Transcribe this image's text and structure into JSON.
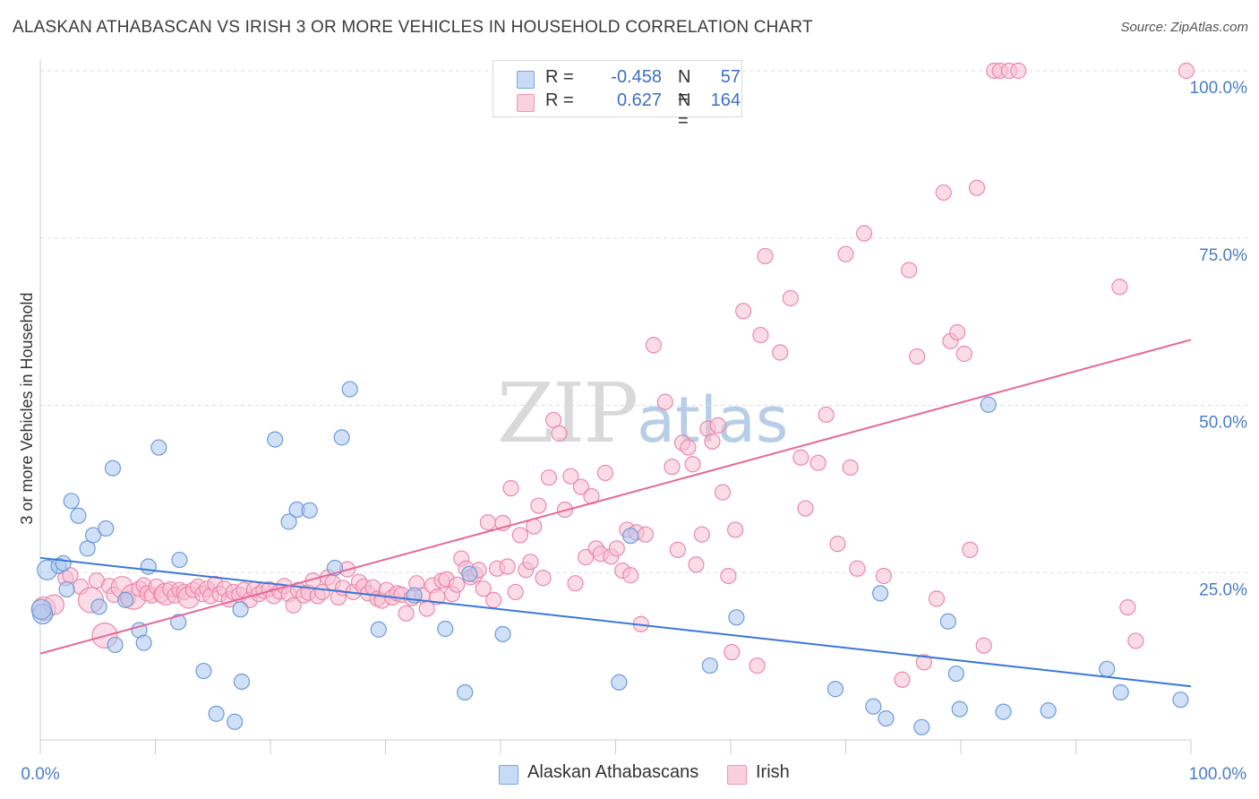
{
  "title": "ALASKAN ATHABASCAN VS IRISH 3 OR MORE VEHICLES IN HOUSEHOLD CORRELATION CHART",
  "source": "Source: ZipAtlas.com",
  "watermark": {
    "zip": "ZIP",
    "atlas": "atlas"
  },
  "legend": {
    "r_label": "R =",
    "n_label": "N =",
    "rows": [
      {
        "series": "Alaskan Athabascans",
        "r": "-0.458",
        "n": "57",
        "color": "#9dbfeb"
      },
      {
        "series": "Irish",
        "r": "0.627",
        "n": "164",
        "color": "#f5a8c2"
      }
    ]
  },
  "colors": {
    "athabascan_fill": "#a9c6ef",
    "athabascan_stroke": "#6d9bdc",
    "athabascan_line": "#3a78d6",
    "irish_fill": "#f8bfd2",
    "irish_stroke": "#ec88aa",
    "irish_line": "#e7679a",
    "tick_text": "#4a7cc7",
    "grid": "#dddddd"
  },
  "chart_data": {
    "type": "scatter",
    "title": "ALASKAN ATHABASCAN VS IRISH 3 OR MORE VEHICLES IN HOUSEHOLD CORRELATION CHART",
    "xlabel": "",
    "ylabel": "3 or more Vehicles in Household",
    "xlim": [
      0,
      100
    ],
    "ylim": [
      0,
      100
    ],
    "x_tick_labels": [
      "0.0%",
      "100.0%"
    ],
    "y_ticks": [
      25,
      50,
      75,
      100
    ],
    "y_tick_labels": [
      "25.0%",
      "50.0%",
      "75.0%",
      "100.0%"
    ],
    "grid": "horizontal dashed",
    "legend_position": "top-center",
    "series": [
      {
        "name": "Alaskan Athabascans",
        "trend": {
          "x": [
            0,
            100
          ],
          "y": [
            27.2,
            8.0
          ]
        },
        "points": [
          [
            0.2,
            18.8
          ],
          [
            0.6,
            25.4
          ],
          [
            1.6,
            26.0
          ],
          [
            2.0,
            26.4
          ],
          [
            2.3,
            22.5
          ],
          [
            2.7,
            35.7
          ],
          [
            3.3,
            33.5
          ],
          [
            4.1,
            28.6
          ],
          [
            4.6,
            30.6
          ],
          [
            5.1,
            19.9
          ],
          [
            5.7,
            31.6
          ],
          [
            6.3,
            40.6
          ],
          [
            6.5,
            14.2
          ],
          [
            7.4,
            20.9
          ],
          [
            8.6,
            16.4
          ],
          [
            9.0,
            14.5
          ],
          [
            9.4,
            25.9
          ],
          [
            10.3,
            43.7
          ],
          [
            12.0,
            17.6
          ],
          [
            12.1,
            26.9
          ],
          [
            14.2,
            10.3
          ],
          [
            15.3,
            3.9
          ],
          [
            16.9,
            2.7
          ],
          [
            17.4,
            19.5
          ],
          [
            17.5,
            8.7
          ],
          [
            20.4,
            44.9
          ],
          [
            21.6,
            32.6
          ],
          [
            22.3,
            34.4
          ],
          [
            23.4,
            34.3
          ],
          [
            25.6,
            25.7
          ],
          [
            26.2,
            45.2
          ],
          [
            26.9,
            52.4
          ],
          [
            29.4,
            16.5
          ],
          [
            32.5,
            21.6
          ],
          [
            35.2,
            16.6
          ],
          [
            36.9,
            7.1
          ],
          [
            37.3,
            24.8
          ],
          [
            40.2,
            15.8
          ],
          [
            50.3,
            8.6
          ],
          [
            51.3,
            30.5
          ],
          [
            58.2,
            11.1
          ],
          [
            60.5,
            18.3
          ],
          [
            69.1,
            7.6
          ],
          [
            72.4,
            5.0
          ],
          [
            73.0,
            21.9
          ],
          [
            73.5,
            3.2
          ],
          [
            76.6,
            1.9
          ],
          [
            78.9,
            17.7
          ],
          [
            79.6,
            9.9
          ],
          [
            79.9,
            4.6
          ],
          [
            82.4,
            50.1
          ],
          [
            83.7,
            4.2
          ],
          [
            87.6,
            4.4
          ],
          [
            92.7,
            10.6
          ],
          [
            93.9,
            7.1
          ],
          [
            99.1,
            6.0
          ],
          [
            0.1,
            19.5
          ]
        ]
      },
      {
        "name": "Irish",
        "trend": {
          "x": [
            0,
            100
          ],
          "y": [
            12.9,
            59.8
          ]
        },
        "points": [
          [
            0.3,
            19.6
          ],
          [
            1.2,
            20.2
          ],
          [
            2.2,
            24.2
          ],
          [
            2.6,
            24.6
          ],
          [
            3.5,
            22.9
          ],
          [
            4.4,
            20.9
          ],
          [
            4.9,
            23.8
          ],
          [
            5.6,
            15.6
          ],
          [
            6.0,
            23.0
          ],
          [
            6.4,
            21.7
          ],
          [
            7.1,
            22.8
          ],
          [
            7.6,
            21.1
          ],
          [
            8.1,
            21.4
          ],
          [
            8.6,
            22.6
          ],
          [
            9.0,
            23.1
          ],
          [
            9.3,
            21.9
          ],
          [
            9.7,
            21.6
          ],
          [
            10.1,
            22.9
          ],
          [
            10.5,
            21.7
          ],
          [
            10.9,
            21.8
          ],
          [
            11.3,
            22.5
          ],
          [
            11.7,
            21.6
          ],
          [
            12.1,
            22.4
          ],
          [
            12.5,
            22.1
          ],
          [
            12.9,
            21.3
          ],
          [
            13.3,
            22.4
          ],
          [
            13.7,
            22.9
          ],
          [
            14.1,
            21.8
          ],
          [
            14.5,
            22.6
          ],
          [
            14.8,
            21.5
          ],
          [
            15.2,
            23.3
          ],
          [
            15.6,
            21.8
          ],
          [
            16.0,
            22.6
          ],
          [
            16.4,
            21.0
          ],
          [
            16.8,
            22.1
          ],
          [
            17.3,
            21.7
          ],
          [
            17.7,
            22.4
          ],
          [
            18.2,
            20.9
          ],
          [
            18.6,
            22.5
          ],
          [
            19.0,
            21.8
          ],
          [
            19.4,
            22.3
          ],
          [
            19.9,
            22.5
          ],
          [
            20.3,
            21.5
          ],
          [
            20.8,
            22.2
          ],
          [
            21.2,
            23.0
          ],
          [
            21.6,
            21.8
          ],
          [
            22.0,
            20.1
          ],
          [
            22.4,
            22.4
          ],
          [
            22.9,
            21.6
          ],
          [
            23.3,
            22.0
          ],
          [
            23.7,
            23.8
          ],
          [
            24.1,
            21.5
          ],
          [
            24.5,
            22.1
          ],
          [
            25.0,
            24.3
          ],
          [
            25.4,
            23.5
          ],
          [
            25.9,
            21.3
          ],
          [
            26.3,
            22.7
          ],
          [
            26.7,
            25.5
          ],
          [
            27.2,
            22.1
          ],
          [
            27.7,
            23.6
          ],
          [
            28.1,
            22.9
          ],
          [
            28.5,
            21.9
          ],
          [
            28.9,
            22.8
          ],
          [
            29.3,
            21.1
          ],
          [
            29.7,
            20.8
          ],
          [
            30.1,
            22.4
          ],
          [
            30.6,
            21.3
          ],
          [
            31.0,
            21.9
          ],
          [
            31.4,
            21.7
          ],
          [
            31.8,
            18.9
          ],
          [
            32.3,
            21.2
          ],
          [
            32.7,
            23.4
          ],
          [
            33.2,
            21.6
          ],
          [
            33.6,
            19.6
          ],
          [
            34.1,
            23.1
          ],
          [
            34.5,
            21.4
          ],
          [
            34.9,
            23.8
          ],
          [
            35.3,
            24.0
          ],
          [
            35.8,
            21.8
          ],
          [
            36.2,
            23.2
          ],
          [
            36.6,
            27.1
          ],
          [
            37.0,
            25.6
          ],
          [
            37.4,
            24.3
          ],
          [
            37.8,
            24.7
          ],
          [
            38.1,
            25.4
          ],
          [
            38.5,
            22.6
          ],
          [
            38.9,
            32.5
          ],
          [
            39.4,
            20.9
          ],
          [
            39.7,
            25.6
          ],
          [
            40.2,
            32.4
          ],
          [
            40.6,
            25.9
          ],
          [
            40.9,
            37.6
          ],
          [
            41.3,
            22.1
          ],
          [
            41.7,
            30.6
          ],
          [
            42.2,
            25.4
          ],
          [
            42.6,
            26.6
          ],
          [
            42.9,
            31.9
          ],
          [
            43.3,
            35.0
          ],
          [
            43.7,
            24.2
          ],
          [
            44.2,
            39.2
          ],
          [
            44.6,
            47.8
          ],
          [
            45.1,
            45.8
          ],
          [
            45.6,
            34.4
          ],
          [
            46.1,
            39.4
          ],
          [
            46.5,
            23.4
          ],
          [
            47.0,
            37.8
          ],
          [
            47.4,
            27.3
          ],
          [
            47.9,
            36.4
          ],
          [
            48.3,
            28.6
          ],
          [
            48.7,
            27.8
          ],
          [
            49.1,
            39.9
          ],
          [
            49.6,
            27.4
          ],
          [
            50.1,
            28.6
          ],
          [
            50.6,
            25.3
          ],
          [
            51.0,
            31.4
          ],
          [
            51.3,
            24.6
          ],
          [
            51.8,
            31.0
          ],
          [
            52.2,
            17.3
          ],
          [
            52.6,
            30.7
          ],
          [
            53.3,
            59.0
          ],
          [
            54.3,
            50.5
          ],
          [
            54.9,
            40.8
          ],
          [
            55.4,
            28.4
          ],
          [
            55.8,
            44.4
          ],
          [
            56.3,
            43.7
          ],
          [
            56.7,
            41.2
          ],
          [
            57.0,
            26.2
          ],
          [
            57.5,
            30.7
          ],
          [
            58.0,
            46.5
          ],
          [
            58.4,
            44.6
          ],
          [
            58.9,
            47.0
          ],
          [
            59.3,
            37.0
          ],
          [
            59.8,
            24.5
          ],
          [
            60.4,
            31.4
          ],
          [
            61.1,
            64.1
          ],
          [
            62.6,
            60.5
          ],
          [
            63.0,
            72.3
          ],
          [
            64.3,
            57.9
          ],
          [
            65.2,
            66.0
          ],
          [
            66.1,
            42.2
          ],
          [
            66.5,
            34.6
          ],
          [
            67.6,
            41.4
          ],
          [
            68.3,
            48.6
          ],
          [
            69.3,
            29.3
          ],
          [
            70.0,
            72.6
          ],
          [
            70.4,
            40.7
          ],
          [
            71.0,
            25.6
          ],
          [
            71.6,
            75.7
          ],
          [
            73.3,
            24.5
          ],
          [
            74.9,
            9.0
          ],
          [
            75.5,
            70.2
          ],
          [
            76.2,
            57.3
          ],
          [
            76.8,
            11.6
          ],
          [
            77.9,
            21.1
          ],
          [
            78.5,
            81.8
          ],
          [
            79.1,
            59.6
          ],
          [
            79.7,
            60.9
          ],
          [
            80.3,
            57.7
          ],
          [
            80.8,
            28.4
          ],
          [
            81.4,
            82.5
          ],
          [
            82.0,
            14.1
          ],
          [
            82.9,
            100.0
          ],
          [
            83.4,
            100.0
          ],
          [
            84.2,
            100.0
          ],
          [
            85.0,
            100.0
          ],
          [
            93.8,
            67.7
          ],
          [
            94.5,
            19.8
          ],
          [
            99.6,
            100.0
          ],
          [
            95.2,
            14.8
          ],
          [
            60.1,
            13.1
          ],
          [
            62.3,
            11.1
          ]
        ]
      }
    ]
  }
}
